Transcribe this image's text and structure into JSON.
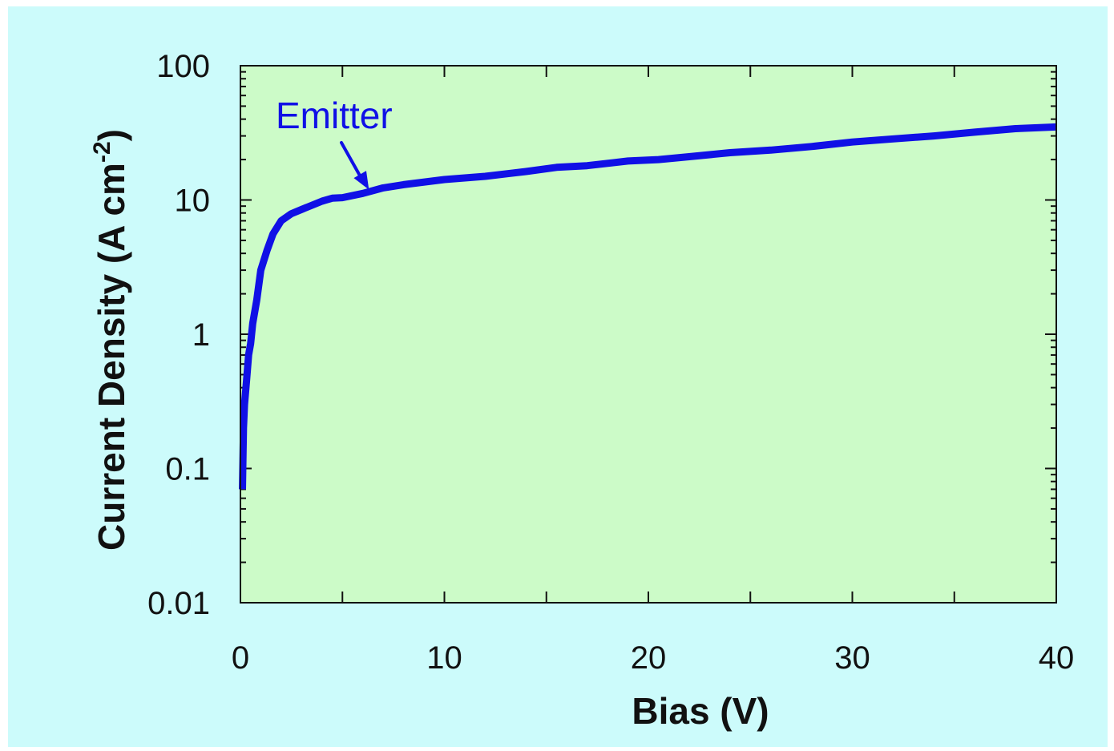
{
  "chart_data": {
    "type": "line",
    "xlabel": "Bias (V)",
    "ylabel_main": "Current Density (A cm",
    "ylabel_sup": "-2",
    "ylabel_close": ")",
    "xlim": [
      0,
      40
    ],
    "ylim": [
      0.01,
      100
    ],
    "yscale": "log",
    "x_ticks": [
      0,
      10,
      20,
      30,
      40
    ],
    "x_tick_labels": [
      "0",
      "10",
      "20",
      "30",
      "40"
    ],
    "x_minor_ticks": [
      5,
      15,
      25,
      35
    ],
    "y_ticks": [
      0.01,
      0.1,
      1,
      10,
      100
    ],
    "y_tick_labels": [
      "0.01",
      "0.1",
      "1",
      "10",
      "100"
    ],
    "grid": false,
    "legend": "none",
    "plot_background": "#ccfbc8",
    "series": [
      {
        "name": "Emitter",
        "color": "#1010e6",
        "x": [
          0.1,
          0.15,
          0.2,
          0.3,
          0.4,
          0.5,
          0.6,
          0.8,
          1.0,
          1.3,
          1.6,
          2.0,
          2.5,
          3.0,
          4.0,
          4.5,
          5.0,
          6.0,
          7.0,
          8.0,
          10.0,
          12.0,
          14.0,
          15.5,
          17.0,
          19.0,
          20.5,
          22.0,
          24.0,
          26.0,
          28.0,
          30.0,
          32.0,
          34.0,
          36.0,
          38.0,
          40.0
        ],
        "y": [
          0.07,
          0.2,
          0.3,
          0.45,
          0.7,
          0.85,
          1.2,
          1.8,
          3.0,
          4.2,
          5.6,
          7.0,
          7.9,
          8.5,
          9.8,
          10.3,
          10.4,
          11.2,
          12.3,
          13.0,
          14.2,
          15.0,
          16.3,
          17.5,
          18.0,
          19.5,
          20.0,
          21.0,
          22.5,
          23.5,
          25.0,
          27.0,
          28.5,
          30.0,
          32.0,
          34.0,
          35.0
        ]
      }
    ],
    "annotations": [
      {
        "text": "Emitter",
        "color": "#1010e6",
        "arrow_to": [
          6.3,
          11.3
        ]
      }
    ]
  }
}
